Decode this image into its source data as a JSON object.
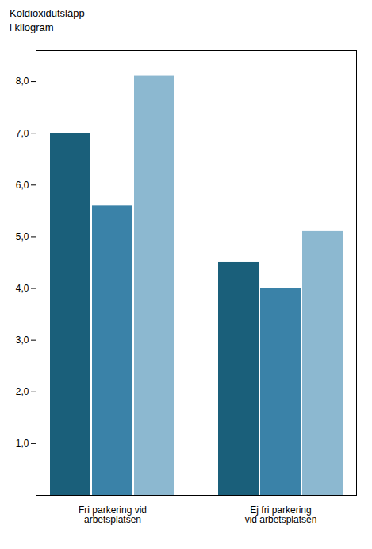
{
  "chart_data": {
    "type": "bar",
    "title": "Koldioxidutsläpp\ni kilogram",
    "categories": [
      "Fri parkering vid\narbetsplatsen",
      "Ej fri parkering\nvid arbetsplatsen"
    ],
    "series": [
      {
        "color": "#1a5f7a",
        "values": [
          7.0,
          4.5
        ]
      },
      {
        "color": "#3a82a8",
        "values": [
          5.6,
          4.0
        ]
      },
      {
        "color": "#8cb8d0",
        "values": [
          8.1,
          5.1
        ]
      }
    ],
    "ylim": [
      0,
      8.6
    ],
    "yticks": [
      {
        "value": 1.0,
        "label": "1,0"
      },
      {
        "value": 2.0,
        "label": "2,0"
      },
      {
        "value": 3.0,
        "label": "3,0"
      },
      {
        "value": 4.0,
        "label": "4,0"
      },
      {
        "value": 5.0,
        "label": "5,0"
      },
      {
        "value": 6.0,
        "label": "6,0"
      },
      {
        "value": 7.0,
        "label": "7,0"
      },
      {
        "value": 8.0,
        "label": "8,0"
      }
    ],
    "grid": false
  }
}
